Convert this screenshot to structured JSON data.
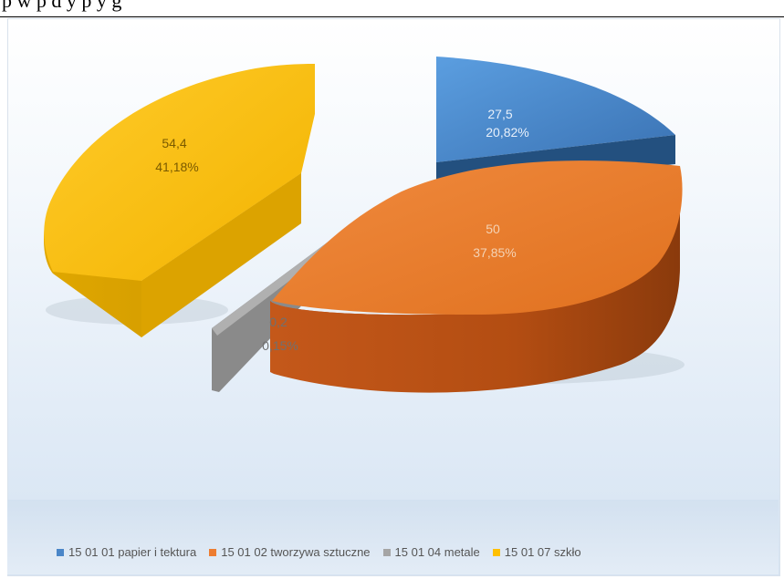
{
  "chart_data": {
    "type": "pie",
    "title": "",
    "labels": [
      "15 01 01 papier i tektura",
      "15 01 02 tworzywa sztuczne",
      "15 01 04 metale",
      "15 01 07 szkło"
    ],
    "values": [
      27.5,
      50,
      0.2,
      54.4
    ],
    "value_labels": [
      "27,5",
      "50",
      "0,2",
      "54,4"
    ],
    "percent_labels": [
      "20,82%",
      "37,85%",
      "0,15%",
      "41,18%"
    ],
    "colors": [
      "#4a86c8",
      "#ed7d31",
      "#a5a5a5",
      "#ffc000"
    ],
    "style": "3d-exploded",
    "legend_position": "bottom"
  }
}
